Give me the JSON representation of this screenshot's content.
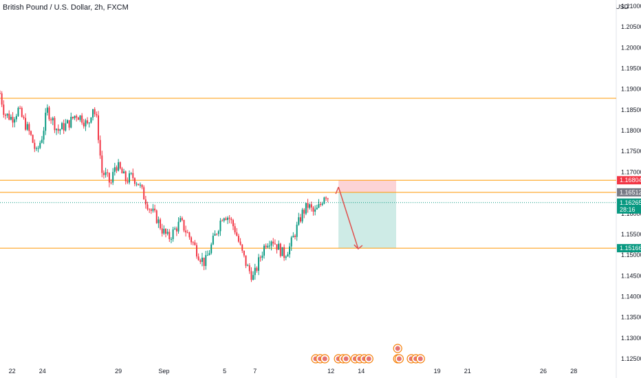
{
  "chart_data": {
    "type": "candlestick",
    "title": "British Pound / U.S. Dollar, 2h, FXCM",
    "currency": "USD",
    "y_ticks": [
      1.21,
      1.205,
      1.2,
      1.195,
      1.19,
      1.185,
      1.18,
      1.175,
      1.17,
      1.165,
      1.16,
      1.155,
      1.15,
      1.145,
      1.14,
      1.135,
      1.13,
      1.125
    ],
    "y_tick_labels": [
      "1.21000",
      "1.20500",
      "1.20000",
      "1.19500",
      "1.19000",
      "1.18500",
      "1.18000",
      "1.17500",
      "1.17000",
      "1.16500",
      "1.16000",
      "1.15500",
      "1.15000",
      "1.14500",
      "1.14000",
      "1.13500",
      "1.13000",
      "1.12500"
    ],
    "ylim": [
      1.1225,
      1.2125
    ],
    "x_labels": [
      "22",
      "24",
      "29",
      "Sep",
      "5",
      "7",
      "12",
      "14",
      "19",
      "21",
      "26",
      "28"
    ],
    "x_label_days": [
      22,
      24,
      29,
      32,
      36,
      38,
      43,
      45,
      50,
      52,
      57,
      59
    ],
    "xlim_days": [
      21.2,
      61.8
    ],
    "horizontal_levels": [
      1.1878,
      1.16804,
      1.16512,
      1.15166
    ],
    "price_labels": [
      {
        "value": 1.16804,
        "text": "1.16804",
        "color": "#f23645"
      },
      {
        "value": 1.16512,
        "text": "1.16512",
        "color": "#787b86"
      },
      {
        "value": 1.16265,
        "text": "1.16265",
        "sub": "28:16",
        "color": "#089981"
      },
      {
        "value": 1.15166,
        "text": "1.15166",
        "color": "#089981"
      }
    ],
    "last_price": 1.16265,
    "position": {
      "type": "short",
      "entry": 1.16512,
      "stop": 1.16804,
      "target": 1.15166,
      "start_day": 43.5,
      "end_day": 47.3
    },
    "arrow": {
      "from": {
        "day": 43.5,
        "price": 1.1664
      },
      "to": {
        "day": 44.8,
        "price": 1.1515
      }
    },
    "path": [
      [
        21.2,
        1.189
      ],
      [
        21.5,
        1.184
      ],
      [
        22.0,
        1.183
      ],
      [
        22.4,
        1.185
      ],
      [
        22.8,
        1.182
      ],
      [
        23.2,
        1.179
      ],
      [
        23.6,
        1.1745
      ],
      [
        24.0,
        1.179
      ],
      [
        24.3,
        1.185
      ],
      [
        24.6,
        1.183
      ],
      [
        25.0,
        1.18
      ],
      [
        25.4,
        1.181
      ],
      [
        25.8,
        1.182
      ],
      [
        26.2,
        1.184
      ],
      [
        26.6,
        1.183
      ],
      [
        27.0,
        1.181
      ],
      [
        27.3,
        1.186
      ],
      [
        27.6,
        1.182
      ],
      [
        27.9,
        1.17
      ],
      [
        28.2,
        1.169
      ],
      [
        28.5,
        1.167
      ],
      [
        28.8,
        1.172
      ],
      [
        29.1,
        1.1705
      ],
      [
        29.5,
        1.168
      ],
      [
        29.9,
        1.169
      ],
      [
        30.3,
        1.1675
      ],
      [
        30.7,
        1.164
      ],
      [
        31.1,
        1.161
      ],
      [
        31.5,
        1.159
      ],
      [
        31.9,
        1.156
      ],
      [
        32.3,
        1.154
      ],
      [
        32.7,
        1.156
      ],
      [
        33.1,
        1.158
      ],
      [
        33.5,
        1.1555
      ],
      [
        33.9,
        1.153
      ],
      [
        34.3,
        1.15
      ],
      [
        34.7,
        1.148
      ],
      [
        35.1,
        1.152
      ],
      [
        35.5,
        1.156
      ],
      [
        35.9,
        1.16
      ],
      [
        36.3,
        1.159
      ],
      [
        36.7,
        1.156
      ],
      [
        37.1,
        1.151
      ],
      [
        37.5,
        1.147
      ],
      [
        37.9,
        1.1445
      ],
      [
        38.3,
        1.149
      ],
      [
        38.7,
        1.153
      ],
      [
        39.1,
        1.154
      ],
      [
        39.5,
        1.152
      ],
      [
        39.9,
        1.15
      ],
      [
        40.3,
        1.152
      ],
      [
        40.7,
        1.156
      ],
      [
        41.1,
        1.16
      ],
      [
        41.5,
        1.162
      ],
      [
        41.9,
        1.16
      ],
      [
        42.3,
        1.162
      ],
      [
        42.6,
        1.165
      ],
      [
        42.9,
        1.1635
      ]
    ],
    "events": [
      {
        "day": 42.0
      },
      {
        "day": 42.3
      },
      {
        "day": 42.6
      },
      {
        "day": 43.5
      },
      {
        "day": 43.8
      },
      {
        "day": 44.0
      },
      {
        "day": 44.6
      },
      {
        "day": 44.9
      },
      {
        "day": 45.2
      },
      {
        "day": 45.5
      },
      {
        "day": 47.4
      },
      {
        "day": 47.4,
        "row": 1
      },
      {
        "day": 47.5
      },
      {
        "day": 48.3
      },
      {
        "day": 48.6
      },
      {
        "day": 48.9
      }
    ]
  }
}
